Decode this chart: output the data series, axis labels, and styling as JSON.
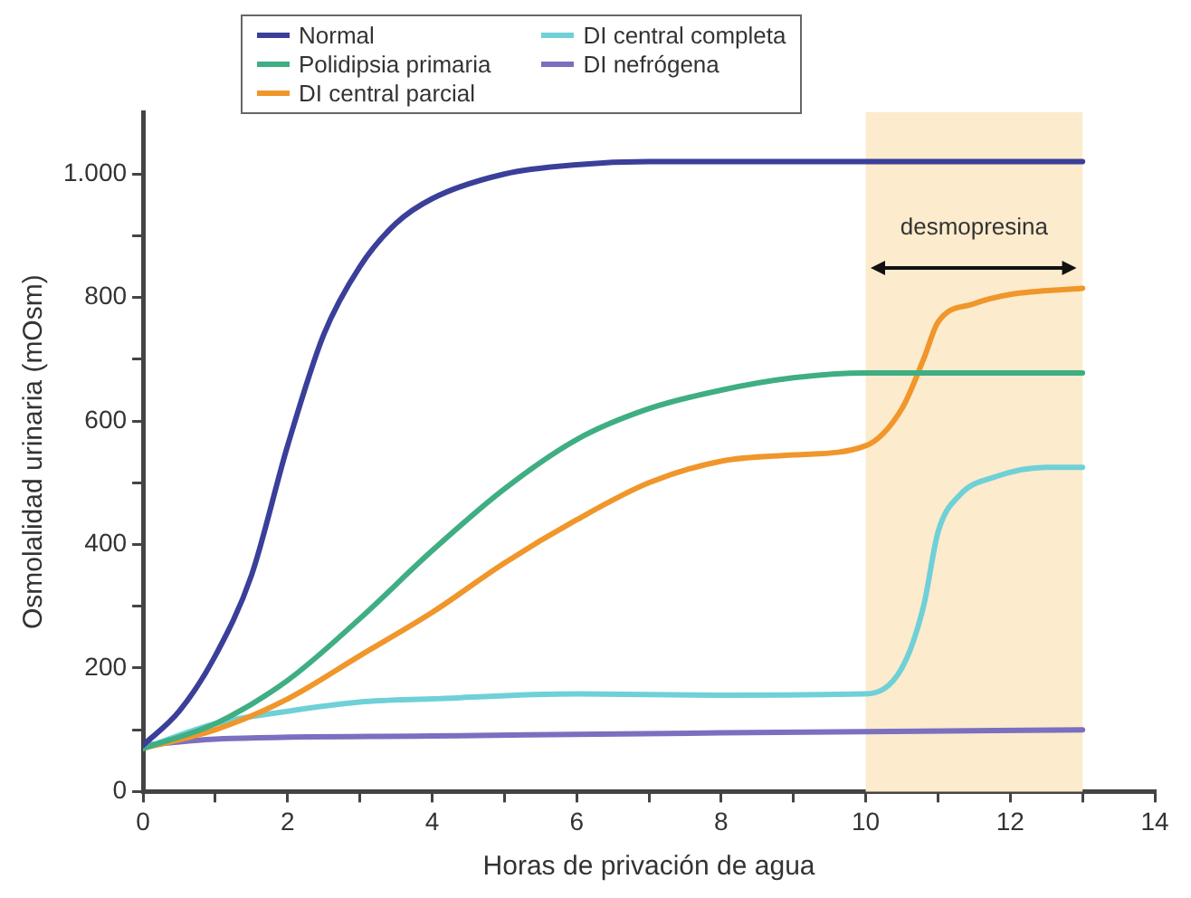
{
  "chart_data": {
    "type": "line",
    "xlabel": "Horas de privación de agua",
    "ylabel": "Osmolalidad urinaria (mOsm)",
    "xlim": [
      0,
      14
    ],
    "ylim": [
      0,
      1100
    ],
    "xticks": [
      0,
      {
        "value": 1,
        "label": null
      },
      2,
      {
        "value": 3,
        "label": null
      },
      4,
      {
        "value": 5,
        "label": null
      },
      6,
      {
        "value": 7,
        "label": null
      },
      8,
      {
        "value": 9,
        "label": null
      },
      10,
      {
        "value": 11,
        "label": null
      },
      12,
      {
        "value": 13,
        "label": null
      },
      14
    ],
    "yticks": [
      0,
      {
        "value": 100,
        "label": null
      },
      200,
      {
        "value": 300,
        "label": null
      },
      400,
      {
        "value": 500,
        "label": null
      },
      600,
      {
        "value": 700,
        "label": null
      },
      800,
      {
        "value": 900,
        "label": null
      },
      {
        "value": 1000,
        "label": "1.000"
      }
    ],
    "grid": false,
    "legend": "top",
    "marker": "none",
    "line_style": "solid",
    "bands": [
      {
        "axis": "x",
        "from": 10,
        "to": 13,
        "label": "desmopresina",
        "color": "#fcebcc"
      }
    ],
    "series": [
      {
        "name": "Normal",
        "color": "#3a3f9a",
        "x": [
          0,
          0.5,
          1,
          1.5,
          2,
          2.5,
          3,
          3.5,
          4,
          5,
          6,
          7,
          13
        ],
        "values": [
          75,
          130,
          220,
          350,
          560,
          740,
          850,
          920,
          960,
          1000,
          1015,
          1020,
          1020
        ]
      },
      {
        "name": "Polidipsia primaria",
        "color": "#3fae83",
        "x": [
          0,
          1,
          2,
          3,
          4,
          5,
          6,
          7,
          8,
          9,
          10,
          13
        ],
        "values": [
          70,
          110,
          180,
          280,
          390,
          490,
          570,
          620,
          650,
          670,
          678,
          678
        ]
      },
      {
        "name": "DI central parcial",
        "color": "#f0962a",
        "x": [
          0,
          1,
          2,
          3,
          4,
          5,
          6,
          7,
          8,
          9,
          10,
          10.5,
          10.8,
          11,
          11.5,
          12,
          13
        ],
        "values": [
          70,
          100,
          150,
          220,
          290,
          370,
          440,
          500,
          535,
          545,
          560,
          620,
          700,
          760,
          790,
          805,
          815
        ]
      },
      {
        "name": "DI central completa",
        "color": "#6fd0d8",
        "x": [
          0,
          1,
          2,
          3,
          4,
          6,
          8,
          10,
          10.5,
          10.8,
          11,
          11.3,
          11.8,
          12.5,
          13
        ],
        "values": [
          70,
          110,
          130,
          145,
          150,
          158,
          156,
          158,
          200,
          300,
          420,
          480,
          510,
          525,
          525
        ]
      },
      {
        "name": "DI nefrógena",
        "color": "#7b6fc0",
        "x": [
          0,
          1,
          4,
          8,
          13
        ],
        "values": [
          75,
          85,
          90,
          95,
          100
        ]
      }
    ]
  }
}
